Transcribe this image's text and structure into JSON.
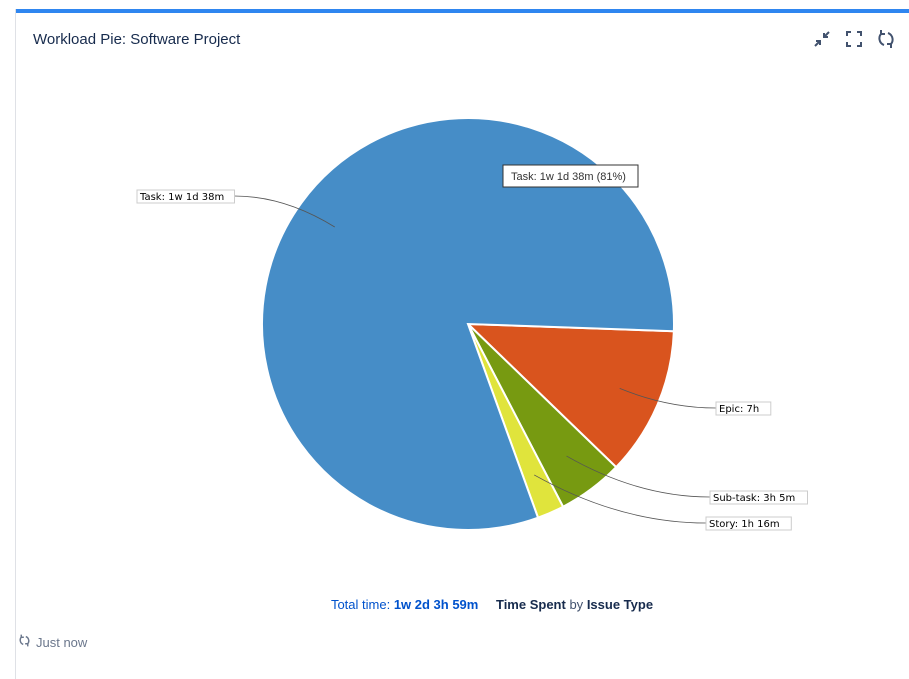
{
  "widget": {
    "title": "Workload Pie: Software Project",
    "icons": [
      "collapse-icon",
      "fullscreen-icon",
      "refresh-icon"
    ],
    "accent_color": "#2f86f0"
  },
  "chart_data": {
    "type": "pie",
    "slices": [
      {
        "name": "Epic",
        "label": "Epic: 7h",
        "value_minutes": 420,
        "color": "#d9541e"
      },
      {
        "name": "Sub-task",
        "label": "Sub-task: 3h 5m",
        "value_minutes": 185,
        "color": "#779a11"
      },
      {
        "name": "Story",
        "label": "Story: 1h 16m",
        "value_minutes": 76,
        "color": "#e0e43c"
      },
      {
        "name": "Task",
        "label": "Task: 1w 1d 38m",
        "value_minutes": 2918,
        "color": "#468dc7"
      }
    ],
    "tooltip": "Task: 1w 1d 38m (81%)"
  },
  "footer": {
    "total_label": "Total time:",
    "total_value": "1w 2d 3h 59m",
    "metric": "Time Spent",
    "by": "by",
    "group": "Issue Type"
  },
  "updated": "Just now"
}
